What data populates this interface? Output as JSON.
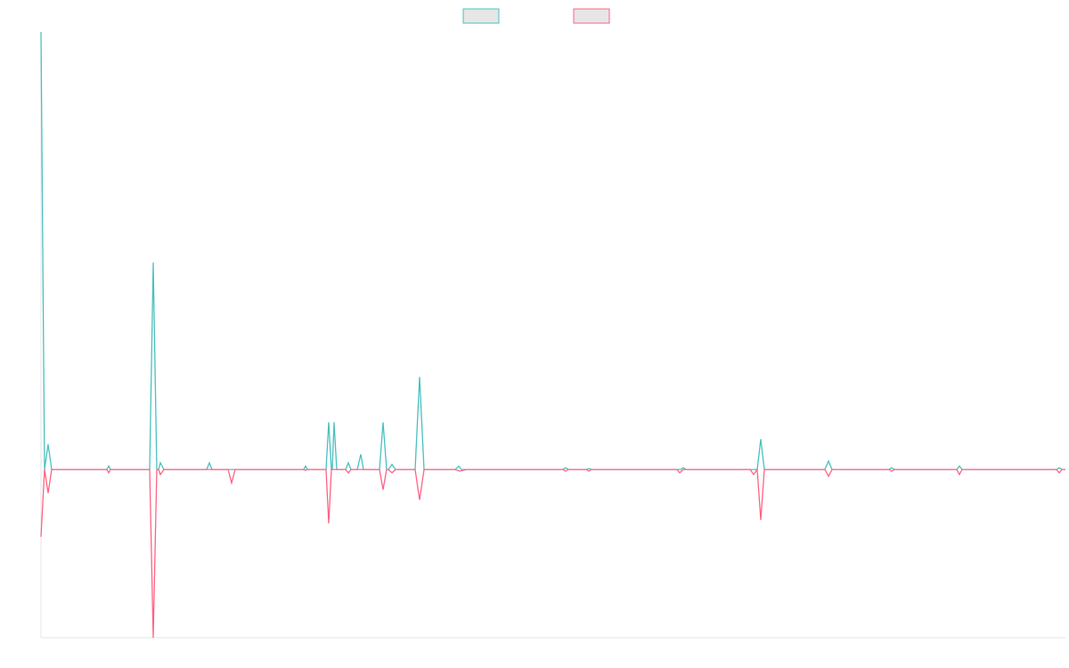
{
  "chart_data": {
    "type": "line",
    "title": "",
    "xlabel": "",
    "ylabel": "",
    "x_range": [
      0,
      1150
    ],
    "ylim": [
      -1.0,
      2.6
    ],
    "baseline": 0,
    "grid": false,
    "legend_placement": "top-center",
    "series": [
      {
        "color": "#4bc0c0",
        "fill": "#e6e6e6",
        "points": [
          [
            0,
            2.6
          ],
          [
            4,
            0
          ],
          [
            8,
            0.15
          ],
          [
            12,
            0
          ],
          [
            74,
            0
          ],
          [
            76,
            0.02
          ],
          [
            78,
            0
          ],
          [
            122,
            0
          ],
          [
            126,
            1.23
          ],
          [
            130,
            0
          ],
          [
            132,
            0
          ],
          [
            134,
            0.04
          ],
          [
            138,
            0
          ],
          [
            186,
            0
          ],
          [
            189,
            0.04
          ],
          [
            192,
            0
          ],
          [
            295,
            0
          ],
          [
            297,
            0.02
          ],
          [
            299,
            0
          ],
          [
            320,
            0
          ],
          [
            323,
            0.28
          ],
          [
            326,
            0
          ],
          [
            327,
            0
          ],
          [
            329,
            0.28
          ],
          [
            332,
            0
          ],
          [
            342,
            0
          ],
          [
            345,
            0.04
          ],
          [
            348,
            0
          ],
          [
            355,
            0
          ],
          [
            359,
            0.09
          ],
          [
            362,
            0
          ],
          [
            380,
            0
          ],
          [
            384,
            0.28
          ],
          [
            388,
            0
          ],
          [
            390,
            0
          ],
          [
            394,
            0.03
          ],
          [
            398,
            0
          ],
          [
            420,
            0
          ],
          [
            425,
            0.55
          ],
          [
            430,
            0
          ],
          [
            465,
            0
          ],
          [
            469,
            0.02
          ],
          [
            472,
            0
          ],
          [
            586,
            0
          ],
          [
            589,
            0.01
          ],
          [
            592,
            0
          ],
          [
            612,
            0
          ],
          [
            615,
            0.005
          ],
          [
            618,
            0
          ],
          [
            718,
            0
          ],
          [
            721,
            0.01
          ],
          [
            724,
            0
          ],
          [
            804,
            0
          ],
          [
            808,
            0.18
          ],
          [
            812,
            0
          ],
          [
            880,
            0
          ],
          [
            884,
            0.05
          ],
          [
            888,
            0
          ],
          [
            952,
            0
          ],
          [
            955,
            0.01
          ],
          [
            958,
            0
          ],
          [
            1028,
            0
          ],
          [
            1031,
            0.02
          ],
          [
            1034,
            0
          ],
          [
            1140,
            0
          ],
          [
            1143,
            0.01
          ],
          [
            1146,
            0
          ],
          [
            1150,
            0
          ]
        ]
      },
      {
        "color": "#ff6384",
        "fill": "#e6e6e6",
        "points": [
          [
            0,
            -0.4
          ],
          [
            4,
            0
          ],
          [
            8,
            -0.14
          ],
          [
            12,
            0
          ],
          [
            74,
            0
          ],
          [
            76,
            -0.02
          ],
          [
            78,
            0
          ],
          [
            122,
            0
          ],
          [
            126,
            -1.0
          ],
          [
            130,
            0
          ],
          [
            132,
            0
          ],
          [
            134,
            -0.03
          ],
          [
            138,
            0
          ],
          [
            210,
            0
          ],
          [
            214,
            -0.08
          ],
          [
            218,
            0
          ],
          [
            295,
            0
          ],
          [
            297,
            -0.005
          ],
          [
            299,
            0
          ],
          [
            320,
            0
          ],
          [
            323,
            -0.32
          ],
          [
            326,
            0
          ],
          [
            342,
            0
          ],
          [
            345,
            -0.02
          ],
          [
            348,
            0
          ],
          [
            380,
            0
          ],
          [
            384,
            -0.12
          ],
          [
            388,
            0
          ],
          [
            390,
            0
          ],
          [
            394,
            -0.02
          ],
          [
            398,
            0
          ],
          [
            420,
            0
          ],
          [
            425,
            -0.18
          ],
          [
            430,
            0
          ],
          [
            465,
            0
          ],
          [
            470,
            -0.01
          ],
          [
            478,
            0
          ],
          [
            586,
            0
          ],
          [
            589,
            -0.01
          ],
          [
            592,
            0
          ],
          [
            612,
            0
          ],
          [
            615,
            -0.01
          ],
          [
            618,
            0
          ],
          [
            714,
            0
          ],
          [
            717,
            -0.02
          ],
          [
            721,
            0
          ],
          [
            724,
            0
          ],
          [
            796,
            0
          ],
          [
            800,
            -0.03
          ],
          [
            804,
            0
          ],
          [
            808,
            -0.3
          ],
          [
            812,
            0
          ],
          [
            880,
            0
          ],
          [
            884,
            -0.04
          ],
          [
            888,
            0
          ],
          [
            952,
            0
          ],
          [
            955,
            -0.01
          ],
          [
            958,
            0
          ],
          [
            1028,
            0
          ],
          [
            1031,
            -0.03
          ],
          [
            1034,
            0
          ],
          [
            1140,
            0
          ],
          [
            1143,
            -0.02
          ],
          [
            1146,
            0
          ],
          [
            1150,
            0
          ]
        ]
      }
    ]
  }
}
